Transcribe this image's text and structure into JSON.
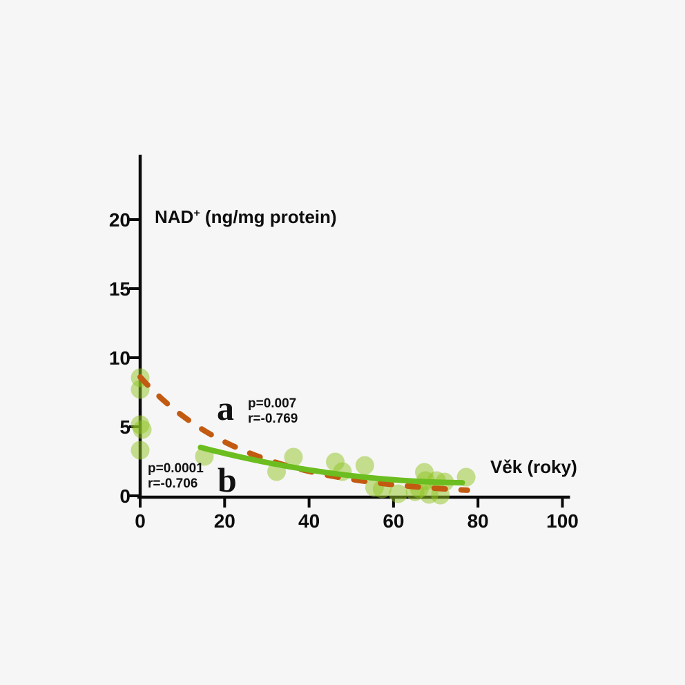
{
  "background_color": "#f6f6f6",
  "axis_color": "#0a0a0a",
  "text_color": "#0d0d0d",
  "chart_data": {
    "type": "scatter",
    "title": "NAD⁺ (ng/mg protein)",
    "title_parts": {
      "base": "NAD",
      "sup": "+",
      "rest": " (ng/mg protein)"
    },
    "xlabel": "Věk (roky)",
    "ylabel": "NAD⁺ (ng/mg protein)",
    "x_ticks": [
      0,
      20,
      40,
      60,
      80,
      100
    ],
    "y_ticks": [
      0,
      5,
      10,
      15,
      20
    ],
    "xlim": [
      0,
      101.3
    ],
    "ylim": [
      0,
      24.7
    ],
    "grid": false,
    "legend_position": "none",
    "point_color": "#8fc321",
    "point_opacity": 0.5,
    "points": [
      [
        0,
        8.55
      ],
      [
        0,
        7.7
      ],
      [
        0,
        5.15
      ],
      [
        0.5,
        4.8
      ],
      [
        0,
        3.3
      ],
      [
        15.2,
        2.85
      ],
      [
        32.3,
        1.75
      ],
      [
        36.3,
        2.8
      ],
      [
        46.2,
        2.45
      ],
      [
        47.9,
        1.75
      ],
      [
        53.2,
        2.2
      ],
      [
        55.5,
        0.6
      ],
      [
        57.3,
        0.5
      ],
      [
        61.1,
        0.15
      ],
      [
        65.1,
        0.3
      ],
      [
        66.1,
        0.5
      ],
      [
        67.3,
        1.7
      ],
      [
        67.6,
        1.1
      ],
      [
        68.4,
        0.1
      ],
      [
        70.2,
        1.1
      ],
      [
        71.1,
        0.05
      ],
      [
        72.1,
        1.0
      ],
      [
        77.2,
        1.35
      ]
    ],
    "series": [
      {
        "label": "a",
        "p_text": "p=0.007",
        "r_text": "r=-0.769",
        "line_style": "dashed",
        "color": "#c35a11",
        "fit": {
          "kind": "exponential",
          "y0": 8.6,
          "k": 0.0395
        },
        "x_domain": [
          0,
          77.5
        ]
      },
      {
        "label": "b",
        "p_text": "p=0.0001",
        "r_text": "r=-0.706",
        "line_style": "solid",
        "color": "#6cbd1f",
        "fit": {
          "kind": "quadratic",
          "a": 4.764,
          "b": -0.0968,
          "c": 0.000613
        },
        "x_domain": [
          14.3,
          76.3
        ]
      }
    ]
  }
}
